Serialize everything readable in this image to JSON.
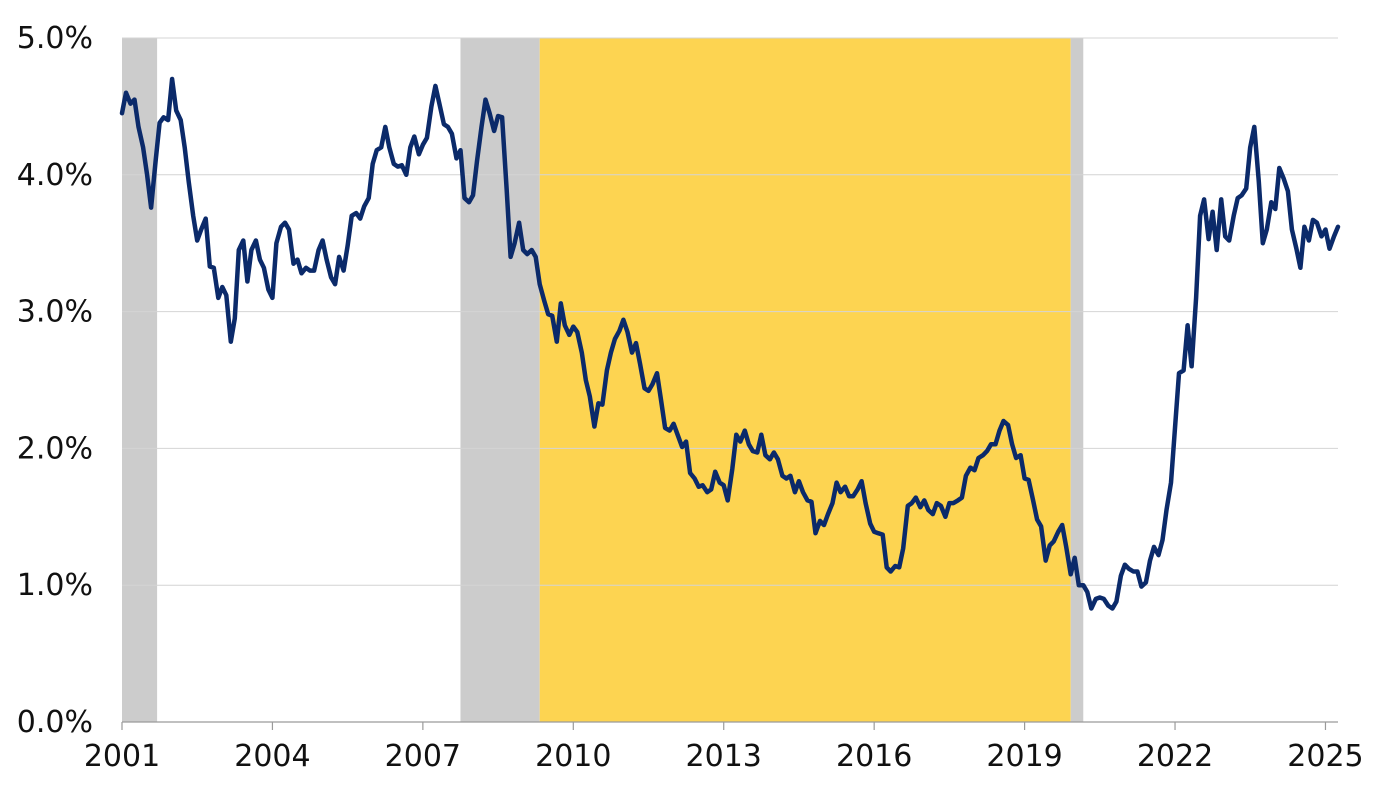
{
  "chart_data": {
    "type": "line",
    "title": "",
    "xlabel": "",
    "ylabel": "",
    "xlim": [
      2001.0,
      2025.25
    ],
    "ylim": [
      0,
      5
    ],
    "grid": true,
    "legend": "none",
    "x_ticks": [
      2001,
      2004,
      2007,
      2010,
      2013,
      2016,
      2019,
      2022,
      2025
    ],
    "x_tick_labels": [
      "2001",
      "2004",
      "2007",
      "2010",
      "2013",
      "2016",
      "2019",
      "2022",
      "2025"
    ],
    "y_ticks": [
      0,
      1,
      2,
      3,
      4,
      5
    ],
    "y_tick_labels": [
      "0.0%",
      "1.0%",
      "2.0%",
      "3.0%",
      "4.0%",
      "5.0%"
    ],
    "shaded_periods": [
      {
        "start": 2001.0,
        "end": 2001.7,
        "color": "#cccccc"
      },
      {
        "start": 2007.75,
        "end": 2009.33,
        "color": "#cccccc"
      },
      {
        "start": 2009.33,
        "end": 2019.92,
        "color": "#fdd451"
      },
      {
        "start": 2019.92,
        "end": 2020.17,
        "color": "#cccccc"
      }
    ],
    "series": [
      {
        "color": "#0b2a6a",
        "points": [
          [
            2001.0,
            4.45
          ],
          [
            2001.08,
            4.6
          ],
          [
            2001.17,
            4.52
          ],
          [
            2001.25,
            4.55
          ],
          [
            2001.33,
            4.35
          ],
          [
            2001.42,
            4.2
          ],
          [
            2001.5,
            4.0
          ],
          [
            2001.58,
            3.76
          ],
          [
            2001.67,
            4.1
          ],
          [
            2001.75,
            4.38
          ],
          [
            2001.83,
            4.42
          ],
          [
            2001.92,
            4.4
          ],
          [
            2002.0,
            4.7
          ],
          [
            2002.08,
            4.47
          ],
          [
            2002.17,
            4.4
          ],
          [
            2002.25,
            4.2
          ],
          [
            2002.33,
            3.95
          ],
          [
            2002.42,
            3.7
          ],
          [
            2002.5,
            3.52
          ],
          [
            2002.58,
            3.6
          ],
          [
            2002.67,
            3.68
          ],
          [
            2002.75,
            3.33
          ],
          [
            2002.83,
            3.32
          ],
          [
            2002.92,
            3.1
          ],
          [
            2003.0,
            3.18
          ],
          [
            2003.08,
            3.12
          ],
          [
            2003.17,
            2.78
          ],
          [
            2003.25,
            2.95
          ],
          [
            2003.33,
            3.45
          ],
          [
            2003.42,
            3.52
          ],
          [
            2003.5,
            3.22
          ],
          [
            2003.58,
            3.45
          ],
          [
            2003.67,
            3.52
          ],
          [
            2003.75,
            3.38
          ],
          [
            2003.83,
            3.32
          ],
          [
            2003.92,
            3.16
          ],
          [
            2004.0,
            3.1
          ],
          [
            2004.08,
            3.5
          ],
          [
            2004.17,
            3.62
          ],
          [
            2004.25,
            3.65
          ],
          [
            2004.33,
            3.6
          ],
          [
            2004.42,
            3.35
          ],
          [
            2004.5,
            3.38
          ],
          [
            2004.58,
            3.28
          ],
          [
            2004.67,
            3.32
          ],
          [
            2004.75,
            3.3
          ],
          [
            2004.83,
            3.3
          ],
          [
            2004.92,
            3.45
          ],
          [
            2005.0,
            3.52
          ],
          [
            2005.08,
            3.38
          ],
          [
            2005.17,
            3.25
          ],
          [
            2005.25,
            3.2
          ],
          [
            2005.33,
            3.4
          ],
          [
            2005.42,
            3.3
          ],
          [
            2005.5,
            3.48
          ],
          [
            2005.58,
            3.7
          ],
          [
            2005.67,
            3.72
          ],
          [
            2005.75,
            3.68
          ],
          [
            2005.83,
            3.77
          ],
          [
            2005.92,
            3.83
          ],
          [
            2006.0,
            4.08
          ],
          [
            2006.08,
            4.18
          ],
          [
            2006.17,
            4.2
          ],
          [
            2006.25,
            4.35
          ],
          [
            2006.33,
            4.2
          ],
          [
            2006.42,
            4.08
          ],
          [
            2006.5,
            4.06
          ],
          [
            2006.58,
            4.07
          ],
          [
            2006.67,
            4.0
          ],
          [
            2006.75,
            4.2
          ],
          [
            2006.83,
            4.28
          ],
          [
            2006.92,
            4.15
          ],
          [
            2007.0,
            4.22
          ],
          [
            2007.08,
            4.27
          ],
          [
            2007.17,
            4.5
          ],
          [
            2007.25,
            4.65
          ],
          [
            2007.33,
            4.52
          ],
          [
            2007.42,
            4.37
          ],
          [
            2007.5,
            4.35
          ],
          [
            2007.58,
            4.3
          ],
          [
            2007.67,
            4.12
          ],
          [
            2007.75,
            4.18
          ],
          [
            2007.83,
            3.83
          ],
          [
            2007.92,
            3.8
          ],
          [
            2008.0,
            3.85
          ],
          [
            2008.08,
            4.1
          ],
          [
            2008.17,
            4.35
          ],
          [
            2008.25,
            4.55
          ],
          [
            2008.33,
            4.45
          ],
          [
            2008.42,
            4.32
          ],
          [
            2008.5,
            4.43
          ],
          [
            2008.58,
            4.42
          ],
          [
            2008.67,
            3.9
          ],
          [
            2008.75,
            3.4
          ],
          [
            2008.83,
            3.5
          ],
          [
            2008.92,
            3.65
          ],
          [
            2009.0,
            3.45
          ],
          [
            2009.08,
            3.42
          ],
          [
            2009.17,
            3.45
          ],
          [
            2009.25,
            3.4
          ],
          [
            2009.33,
            3.2
          ],
          [
            2009.42,
            3.08
          ],
          [
            2009.5,
            2.98
          ],
          [
            2009.58,
            2.97
          ],
          [
            2009.67,
            2.78
          ],
          [
            2009.75,
            3.06
          ],
          [
            2009.83,
            2.9
          ],
          [
            2009.92,
            2.83
          ],
          [
            2010.0,
            2.89
          ],
          [
            2010.08,
            2.85
          ],
          [
            2010.17,
            2.7
          ],
          [
            2010.25,
            2.5
          ],
          [
            2010.33,
            2.38
          ],
          [
            2010.42,
            2.16
          ],
          [
            2010.5,
            2.33
          ],
          [
            2010.58,
            2.32
          ],
          [
            2010.67,
            2.57
          ],
          [
            2010.75,
            2.7
          ],
          [
            2010.83,
            2.8
          ],
          [
            2010.92,
            2.86
          ],
          [
            2011.0,
            2.94
          ],
          [
            2011.08,
            2.85
          ],
          [
            2011.17,
            2.7
          ],
          [
            2011.25,
            2.77
          ],
          [
            2011.33,
            2.62
          ],
          [
            2011.42,
            2.44
          ],
          [
            2011.5,
            2.42
          ],
          [
            2011.58,
            2.47
          ],
          [
            2011.67,
            2.55
          ],
          [
            2011.75,
            2.35
          ],
          [
            2011.83,
            2.15
          ],
          [
            2011.92,
            2.13
          ],
          [
            2012.0,
            2.18
          ],
          [
            2012.08,
            2.1
          ],
          [
            2012.17,
            2.01
          ],
          [
            2012.25,
            2.05
          ],
          [
            2012.33,
            1.82
          ],
          [
            2012.42,
            1.78
          ],
          [
            2012.5,
            1.72
          ],
          [
            2012.58,
            1.73
          ],
          [
            2012.67,
            1.68
          ],
          [
            2012.75,
            1.7
          ],
          [
            2012.83,
            1.83
          ],
          [
            2012.92,
            1.75
          ],
          [
            2013.0,
            1.73
          ],
          [
            2013.08,
            1.62
          ],
          [
            2013.17,
            1.85
          ],
          [
            2013.25,
            2.1
          ],
          [
            2013.33,
            2.05
          ],
          [
            2013.42,
            2.13
          ],
          [
            2013.5,
            2.03
          ],
          [
            2013.58,
            1.98
          ],
          [
            2013.67,
            1.97
          ],
          [
            2013.75,
            2.1
          ],
          [
            2013.83,
            1.95
          ],
          [
            2013.92,
            1.92
          ],
          [
            2014.0,
            1.97
          ],
          [
            2014.08,
            1.92
          ],
          [
            2014.17,
            1.8
          ],
          [
            2014.25,
            1.78
          ],
          [
            2014.33,
            1.8
          ],
          [
            2014.42,
            1.68
          ],
          [
            2014.5,
            1.76
          ],
          [
            2014.58,
            1.68
          ],
          [
            2014.67,
            1.62
          ],
          [
            2014.75,
            1.61
          ],
          [
            2014.83,
            1.38
          ],
          [
            2014.92,
            1.47
          ],
          [
            2015.0,
            1.44
          ],
          [
            2015.08,
            1.52
          ],
          [
            2015.17,
            1.6
          ],
          [
            2015.25,
            1.75
          ],
          [
            2015.33,
            1.68
          ],
          [
            2015.42,
            1.72
          ],
          [
            2015.5,
            1.65
          ],
          [
            2015.58,
            1.65
          ],
          [
            2015.67,
            1.7
          ],
          [
            2015.75,
            1.76
          ],
          [
            2015.83,
            1.6
          ],
          [
            2015.92,
            1.45
          ],
          [
            2016.0,
            1.39
          ],
          [
            2016.08,
            1.38
          ],
          [
            2016.17,
            1.37
          ],
          [
            2016.25,
            1.13
          ],
          [
            2016.33,
            1.1
          ],
          [
            2016.42,
            1.14
          ],
          [
            2016.5,
            1.13
          ],
          [
            2016.58,
            1.27
          ],
          [
            2016.67,
            1.58
          ],
          [
            2016.75,
            1.6
          ],
          [
            2016.83,
            1.64
          ],
          [
            2016.92,
            1.57
          ],
          [
            2017.0,
            1.62
          ],
          [
            2017.08,
            1.55
          ],
          [
            2017.17,
            1.52
          ],
          [
            2017.25,
            1.6
          ],
          [
            2017.33,
            1.58
          ],
          [
            2017.42,
            1.5
          ],
          [
            2017.5,
            1.6
          ],
          [
            2017.58,
            1.6
          ],
          [
            2017.67,
            1.62
          ],
          [
            2017.75,
            1.64
          ],
          [
            2017.83,
            1.8
          ],
          [
            2017.92,
            1.86
          ],
          [
            2018.0,
            1.84
          ],
          [
            2018.08,
            1.93
          ],
          [
            2018.17,
            1.95
          ],
          [
            2018.25,
            1.98
          ],
          [
            2018.33,
            2.03
          ],
          [
            2018.42,
            2.03
          ],
          [
            2018.5,
            2.13
          ],
          [
            2018.58,
            2.2
          ],
          [
            2018.67,
            2.17
          ],
          [
            2018.75,
            2.03
          ],
          [
            2018.83,
            1.93
          ],
          [
            2018.92,
            1.95
          ],
          [
            2019.0,
            1.78
          ],
          [
            2019.08,
            1.77
          ],
          [
            2019.17,
            1.62
          ],
          [
            2019.25,
            1.48
          ],
          [
            2019.33,
            1.43
          ],
          [
            2019.42,
            1.18
          ],
          [
            2019.5,
            1.29
          ],
          [
            2019.58,
            1.32
          ],
          [
            2019.67,
            1.39
          ],
          [
            2019.75,
            1.44
          ],
          [
            2019.83,
            1.28
          ],
          [
            2019.92,
            1.08
          ],
          [
            2020.0,
            1.2
          ],
          [
            2020.08,
            1.0
          ],
          [
            2020.17,
            1.0
          ],
          [
            2020.25,
            0.95
          ],
          [
            2020.33,
            0.83
          ],
          [
            2020.42,
            0.9
          ],
          [
            2020.5,
            0.91
          ],
          [
            2020.58,
            0.9
          ],
          [
            2020.67,
            0.85
          ],
          [
            2020.75,
            0.83
          ],
          [
            2020.83,
            0.88
          ],
          [
            2020.92,
            1.07
          ],
          [
            2021.0,
            1.15
          ],
          [
            2021.08,
            1.12
          ],
          [
            2021.17,
            1.1
          ],
          [
            2021.25,
            1.1
          ],
          [
            2021.33,
            0.99
          ],
          [
            2021.42,
            1.02
          ],
          [
            2021.5,
            1.18
          ],
          [
            2021.58,
            1.28
          ],
          [
            2021.67,
            1.22
          ],
          [
            2021.75,
            1.33
          ],
          [
            2021.83,
            1.55
          ],
          [
            2021.92,
            1.75
          ],
          [
            2022.0,
            2.15
          ],
          [
            2022.08,
            2.55
          ],
          [
            2022.17,
            2.57
          ],
          [
            2022.25,
            2.9
          ],
          [
            2022.33,
            2.6
          ],
          [
            2022.42,
            3.1
          ],
          [
            2022.5,
            3.7
          ],
          [
            2022.58,
            3.82
          ],
          [
            2022.67,
            3.53
          ],
          [
            2022.75,
            3.73
          ],
          [
            2022.83,
            3.45
          ],
          [
            2022.92,
            3.82
          ],
          [
            2023.0,
            3.55
          ],
          [
            2023.08,
            3.52
          ],
          [
            2023.17,
            3.7
          ],
          [
            2023.25,
            3.83
          ],
          [
            2023.33,
            3.85
          ],
          [
            2023.42,
            3.9
          ],
          [
            2023.5,
            4.2
          ],
          [
            2023.58,
            4.35
          ],
          [
            2023.67,
            3.95
          ],
          [
            2023.75,
            3.5
          ],
          [
            2023.83,
            3.6
          ],
          [
            2023.92,
            3.8
          ],
          [
            2024.0,
            3.75
          ],
          [
            2024.08,
            4.05
          ],
          [
            2024.17,
            3.97
          ],
          [
            2024.25,
            3.88
          ],
          [
            2024.33,
            3.6
          ],
          [
            2024.42,
            3.46
          ],
          [
            2024.5,
            3.32
          ],
          [
            2024.58,
            3.62
          ],
          [
            2024.67,
            3.52
          ],
          [
            2024.75,
            3.67
          ],
          [
            2024.83,
            3.65
          ],
          [
            2024.92,
            3.55
          ],
          [
            2025.0,
            3.6
          ],
          [
            2025.08,
            3.46
          ],
          [
            2025.17,
            3.55
          ],
          [
            2025.25,
            3.62
          ]
        ]
      }
    ]
  }
}
